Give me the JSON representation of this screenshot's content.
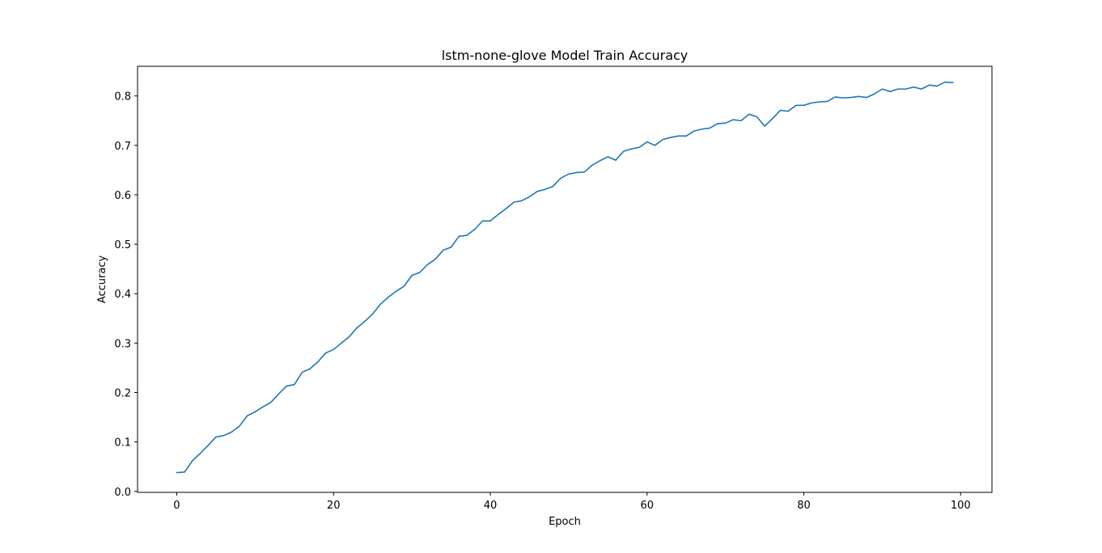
{
  "chart_data": {
    "type": "line",
    "title": "lstm-none-glove Model Train Accuracy",
    "xlabel": "Epoch",
    "ylabel": "Accuracy",
    "xlim": [
      -5,
      104
    ],
    "ylim": [
      -0.002,
      0.86
    ],
    "xticks": [
      0,
      20,
      40,
      60,
      80,
      100
    ],
    "xtick_labels": [
      "0",
      "20",
      "40",
      "60",
      "80",
      "100"
    ],
    "yticks": [
      0.0,
      0.1,
      0.2,
      0.3,
      0.4,
      0.5,
      0.6,
      0.7,
      0.8
    ],
    "ytick_labels": [
      "0.0",
      "0.1",
      "0.2",
      "0.3",
      "0.4",
      "0.5",
      "0.6",
      "0.7",
      "0.8"
    ],
    "grid": false,
    "series": [
      {
        "color": "#1f77b4",
        "x": [
          0,
          1,
          2,
          3,
          4,
          5,
          6,
          7,
          8,
          9,
          10,
          11,
          12,
          13,
          14,
          15,
          16,
          17,
          18,
          19,
          20,
          21,
          22,
          23,
          24,
          25,
          26,
          27,
          28,
          29,
          30,
          31,
          32,
          33,
          34,
          35,
          36,
          37,
          38,
          39,
          40,
          41,
          42,
          43,
          44,
          45,
          46,
          47,
          48,
          49,
          50,
          51,
          52,
          53,
          54,
          55,
          56,
          57,
          58,
          59,
          60,
          61,
          62,
          63,
          64,
          65,
          66,
          67,
          68,
          69,
          70,
          71,
          72,
          73,
          74,
          75,
          76,
          77,
          78,
          79,
          80,
          81,
          82,
          83,
          84,
          85,
          86,
          87,
          88,
          89,
          90,
          91,
          92,
          93,
          94,
          95,
          96,
          97,
          98,
          99
        ],
        "values": [
          0.038,
          0.039,
          0.062,
          0.077,
          0.093,
          0.11,
          0.113,
          0.12,
          0.132,
          0.153,
          0.161,
          0.171,
          0.18,
          0.197,
          0.213,
          0.216,
          0.241,
          0.248,
          0.262,
          0.28,
          0.287,
          0.3,
          0.313,
          0.331,
          0.344,
          0.359,
          0.379,
          0.393,
          0.405,
          0.415,
          0.437,
          0.443,
          0.459,
          0.47,
          0.488,
          0.494,
          0.516,
          0.518,
          0.53,
          0.547,
          0.547,
          0.56,
          0.572,
          0.585,
          0.588,
          0.596,
          0.607,
          0.611,
          0.617,
          0.634,
          0.642,
          0.645,
          0.646,
          0.66,
          0.669,
          0.677,
          0.67,
          0.688,
          0.693,
          0.696,
          0.707,
          0.7,
          0.712,
          0.716,
          0.719,
          0.719,
          0.729,
          0.733,
          0.735,
          0.744,
          0.745,
          0.752,
          0.75,
          0.763,
          0.758,
          0.739,
          0.754,
          0.771,
          0.769,
          0.781,
          0.781,
          0.786,
          0.788,
          0.789,
          0.798,
          0.796,
          0.797,
          0.799,
          0.797,
          0.804,
          0.814,
          0.809,
          0.814,
          0.814,
          0.818,
          0.814,
          0.822,
          0.82,
          0.828,
          0.827
        ]
      }
    ]
  }
}
